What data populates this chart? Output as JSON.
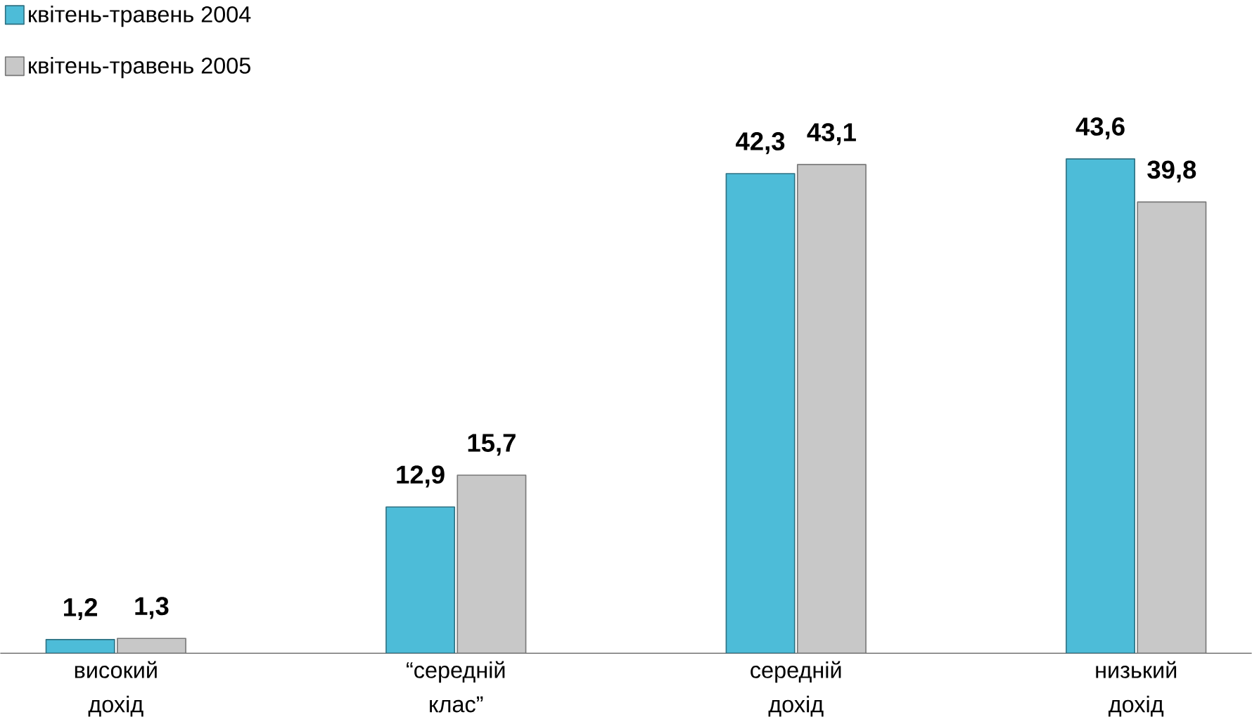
{
  "chart_data": {
    "type": "bar",
    "categories": [
      "високий дохід",
      "“середній клас”",
      "середній дохід",
      "низький дохід"
    ],
    "series": [
      {
        "name": "квітень-травень 2004",
        "color": "#4dbcd8",
        "values": [
          1.2,
          12.9,
          42.3,
          43.6
        ],
        "value_labels": [
          "1,2",
          "12,9",
          "42,3",
          "43,6"
        ]
      },
      {
        "name": "квітень-травень 2005",
        "color": "#c8c8c8",
        "values": [
          1.3,
          15.7,
          43.1,
          39.8
        ],
        "value_labels": [
          "1,3",
          "15,7",
          "43,1",
          "39,8"
        ]
      }
    ],
    "legend": "top left"
  }
}
